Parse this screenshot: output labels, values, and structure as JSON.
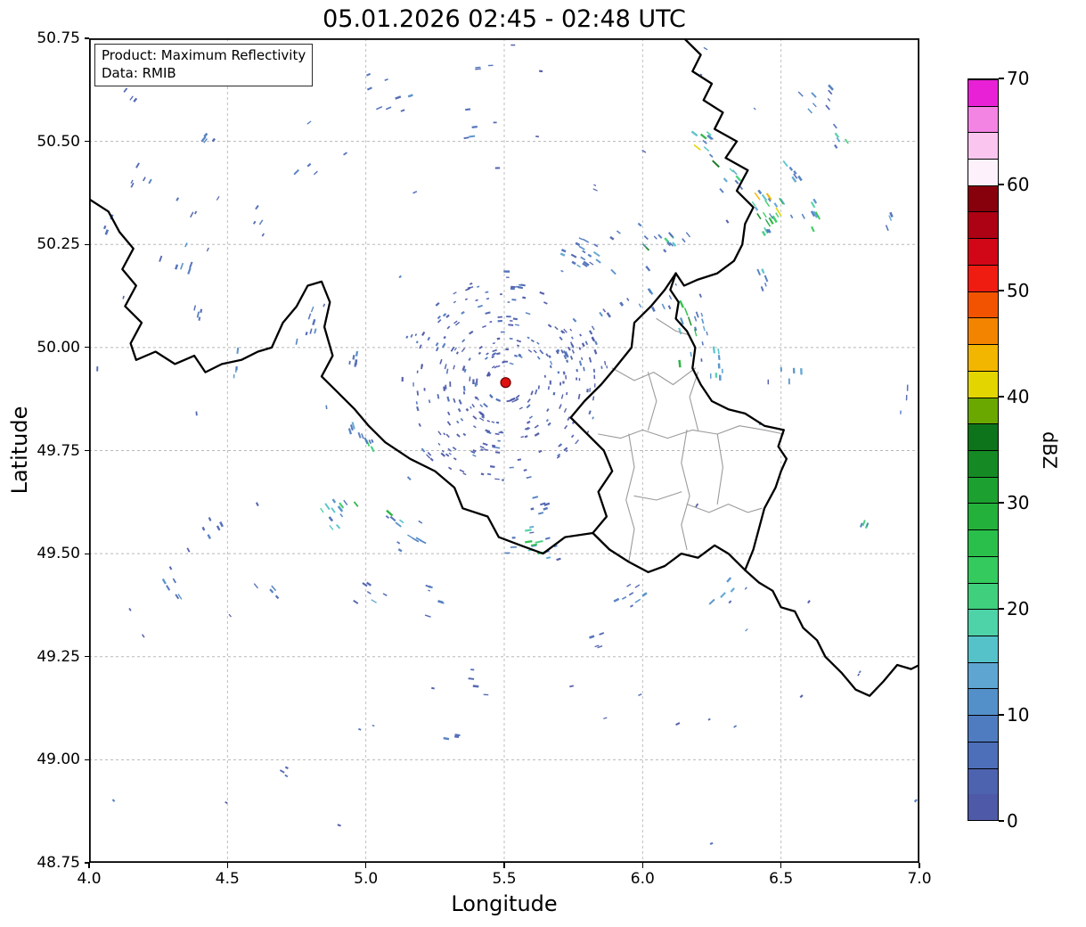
{
  "chart_data": {
    "type": "heatmap",
    "title": "05.01.2026 02:45 - 02:48 UTC",
    "xlabel": "Longitude",
    "ylabel": "Latitude",
    "xlim": [
      4.0,
      7.0
    ],
    "ylim": [
      48.75,
      50.75
    ],
    "xticks": [
      4.0,
      4.5,
      5.0,
      5.5,
      6.0,
      6.5,
      7.0
    ],
    "xtick_labels": [
      "4.0",
      "4.5",
      "5.0",
      "5.5",
      "6.0",
      "6.5",
      "7.0"
    ],
    "yticks": [
      48.75,
      49.0,
      49.25,
      49.5,
      49.75,
      50.0,
      50.25,
      50.5,
      50.75
    ],
    "ytick_labels": [
      "48.75",
      "49.00",
      "49.25",
      "49.50",
      "49.75",
      "50.00",
      "50.25",
      "50.50",
      "50.75"
    ],
    "grid": {
      "style": "dashed",
      "color": "#b8b8b8"
    },
    "annotation_box": {
      "line1": "Product: Maximum Reflectivity",
      "line2": "Data: RMIB"
    },
    "colorbar": {
      "label": "dBZ",
      "vmin": 0,
      "vmax": 70,
      "step_dbz": 2.5,
      "ticks": [
        0,
        10,
        20,
        30,
        40,
        50,
        60,
        70
      ],
      "tick_labels": [
        "0",
        "10",
        "20",
        "30",
        "40",
        "50",
        "60",
        "70"
      ],
      "colors": [
        "#4e59a8",
        "#4d63b0",
        "#4d6eb8",
        "#4f7cc0",
        "#5390c9",
        "#5ea5d2",
        "#55c2ca",
        "#4ed2a7",
        "#40cf7d",
        "#34ca5e",
        "#2abf4a",
        "#23b13b",
        "#1ca02f",
        "#158a24",
        "#0e741b",
        "#6aa800",
        "#e3d500",
        "#f2b500",
        "#f28400",
        "#f25300",
        "#ee1c11",
        "#d10717",
        "#ac0213",
        "#86010c",
        "#fdf2fb",
        "#fac6ef",
        "#f384e3",
        "#e921d6"
      ]
    },
    "radar_site": {
      "lon": 5.505,
      "lat": 49.915,
      "marker_color": "#e01010",
      "edge_color": "#6a0000"
    },
    "clutter_rings": {
      "center_lon": 5.505,
      "center_lat": 49.915,
      "radii_deg": [
        0.05,
        0.08,
        0.11,
        0.14,
        0.17,
        0.21,
        0.25
      ],
      "dbz_range": [
        0,
        9
      ]
    },
    "noise_specks": {
      "count": 70,
      "dbz_range": [
        0,
        10
      ]
    },
    "echo_clusters": [
      [
        6.46,
        50.33,
        26,
        0.09,
        0.07,
        8,
        46
      ],
      [
        6.22,
        50.5,
        10,
        0.05,
        0.05,
        8,
        42
      ],
      [
        6.33,
        50.42,
        8,
        0.05,
        0.04,
        6,
        30
      ],
      [
        6.55,
        50.43,
        6,
        0.04,
        0.05,
        6,
        25
      ],
      [
        6.63,
        50.32,
        7,
        0.05,
        0.04,
        8,
        38
      ],
      [
        6.08,
        50.26,
        14,
        0.1,
        0.04,
        5,
        40
      ],
      [
        5.8,
        50.22,
        20,
        0.13,
        0.05,
        3,
        15
      ],
      [
        6.18,
        50.05,
        16,
        0.08,
        0.09,
        5,
        35
      ],
      [
        6.28,
        49.97,
        8,
        0.05,
        0.05,
        8,
        35
      ],
      [
        6.45,
        50.18,
        5,
        0.04,
        0.04,
        5,
        20
      ],
      [
        6.05,
        50.12,
        8,
        0.06,
        0.06,
        3,
        20
      ],
      [
        4.35,
        50.25,
        8,
        0.08,
        0.09,
        3,
        12
      ],
      [
        4.18,
        50.42,
        5,
        0.05,
        0.05,
        3,
        12
      ],
      [
        4.07,
        50.3,
        3,
        0.03,
        0.04,
        3,
        10
      ],
      [
        4.42,
        50.5,
        4,
        0.04,
        0.04,
        3,
        10
      ],
      [
        5.12,
        50.6,
        5,
        0.06,
        0.05,
        3,
        12
      ],
      [
        5.36,
        50.55,
        4,
        0.04,
        0.04,
        3,
        12
      ],
      [
        5.42,
        50.68,
        3,
        0.04,
        0.03,
        3,
        10
      ],
      [
        4.8,
        50.42,
        3,
        0.05,
        0.04,
        3,
        10
      ],
      [
        4.62,
        50.3,
        4,
        0.05,
        0.05,
        3,
        10
      ],
      [
        4.8,
        50.05,
        8,
        0.06,
        0.06,
        3,
        15
      ],
      [
        4.97,
        49.97,
        6,
        0.05,
        0.04,
        3,
        15
      ],
      [
        4.52,
        49.95,
        4,
        0.04,
        0.04,
        3,
        12
      ],
      [
        5.0,
        49.79,
        10,
        0.06,
        0.04,
        5,
        25
      ],
      [
        4.9,
        49.6,
        12,
        0.08,
        0.06,
        5,
        30
      ],
      [
        5.15,
        49.55,
        12,
        0.08,
        0.06,
        5,
        32
      ],
      [
        4.45,
        49.58,
        5,
        0.05,
        0.05,
        3,
        12
      ],
      [
        4.32,
        49.42,
        6,
        0.06,
        0.05,
        3,
        12
      ],
      [
        4.65,
        49.42,
        4,
        0.05,
        0.04,
        3,
        10
      ],
      [
        5.0,
        49.4,
        6,
        0.06,
        0.05,
        3,
        15
      ],
      [
        5.25,
        49.38,
        5,
        0.05,
        0.05,
        3,
        12
      ],
      [
        5.6,
        49.52,
        14,
        0.09,
        0.05,
        5,
        30
      ],
      [
        5.95,
        49.42,
        8,
        0.07,
        0.05,
        3,
        15
      ],
      [
        6.3,
        49.4,
        5,
        0.05,
        0.04,
        3,
        15
      ],
      [
        5.85,
        49.28,
        4,
        0.05,
        0.04,
        3,
        10
      ],
      [
        5.4,
        49.18,
        4,
        0.05,
        0.04,
        3,
        10
      ],
      [
        5.32,
        49.06,
        3,
        0.04,
        0.03,
        3,
        10
      ],
      [
        4.72,
        48.97,
        3,
        0.04,
        0.03,
        3,
        10
      ],
      [
        6.8,
        49.57,
        4,
        0.03,
        0.05,
        8,
        25
      ],
      [
        6.95,
        49.88,
        3,
        0.03,
        0.04,
        3,
        12
      ],
      [
        6.65,
        50.6,
        8,
        0.08,
        0.05,
        3,
        14
      ],
      [
        6.9,
        50.3,
        3,
        0.04,
        0.03,
        5,
        15
      ],
      [
        6.55,
        49.95,
        5,
        0.05,
        0.05,
        3,
        15
      ],
      [
        5.75,
        50.02,
        6,
        0.06,
        0.05,
        3,
        12
      ],
      [
        5.55,
        50.15,
        5,
        0.05,
        0.05,
        3,
        10
      ],
      [
        5.9,
        50.1,
        6,
        0.06,
        0.05,
        3,
        12
      ],
      [
        4.15,
        50.62,
        3,
        0.04,
        0.04,
        3,
        10
      ],
      [
        4.42,
        50.08,
        4,
        0.05,
        0.05,
        3,
        10
      ],
      [
        5.05,
        50.66,
        3,
        0.04,
        0.03,
        3,
        10
      ],
      [
        5.62,
        49.62,
        6,
        0.05,
        0.04,
        3,
        12
      ],
      [
        6.72,
        50.51,
        5,
        0.04,
        0.05,
        5,
        28
      ]
    ],
    "borders": {
      "country_color": "#000000",
      "country_width": 2.3,
      "region_color": "#9b9b9b",
      "region_width": 1.1,
      "country": [
        [
          [
            4.0,
            50.36
          ],
          [
            4.07,
            50.33
          ],
          [
            4.11,
            50.28
          ],
          [
            4.16,
            50.24
          ],
          [
            4.12,
            50.19
          ],
          [
            4.17,
            50.15
          ],
          [
            4.13,
            50.1
          ],
          [
            4.19,
            50.06
          ],
          [
            4.15,
            50.01
          ],
          [
            4.17,
            49.97
          ],
          [
            4.24,
            49.99
          ],
          [
            4.31,
            49.96
          ],
          [
            4.38,
            49.98
          ],
          [
            4.42,
            49.94
          ],
          [
            4.48,
            49.96
          ],
          [
            4.55,
            49.97
          ],
          [
            4.61,
            49.99
          ],
          [
            4.66,
            50.0
          ],
          [
            4.7,
            50.06
          ],
          [
            4.75,
            50.1
          ],
          [
            4.79,
            50.15
          ],
          [
            4.84,
            50.16
          ],
          [
            4.87,
            50.11
          ],
          [
            4.85,
            50.05
          ],
          [
            4.88,
            49.98
          ],
          [
            4.84,
            49.93
          ],
          [
            4.9,
            49.89
          ],
          [
            4.96,
            49.85
          ],
          [
            5.01,
            49.81
          ],
          [
            5.07,
            49.77
          ],
          [
            5.16,
            49.73
          ],
          [
            5.25,
            49.7
          ],
          [
            5.32,
            49.66
          ],
          [
            5.35,
            49.61
          ],
          [
            5.44,
            49.59
          ],
          [
            5.48,
            49.54
          ],
          [
            5.56,
            49.52
          ],
          [
            5.64,
            49.5
          ],
          [
            5.72,
            49.54
          ],
          [
            5.82,
            49.55
          ]
        ],
        [
          [
            5.82,
            49.55
          ],
          [
            5.87,
            49.59
          ],
          [
            5.84,
            49.65
          ],
          [
            5.89,
            49.7
          ],
          [
            5.86,
            49.75
          ],
          [
            5.8,
            49.79
          ],
          [
            5.74,
            49.83
          ],
          [
            5.79,
            49.87
          ],
          [
            5.85,
            49.91
          ],
          [
            5.9,
            49.95
          ],
          [
            5.96,
            50.0
          ],
          [
            5.97,
            50.06
          ],
          [
            6.03,
            50.1
          ],
          [
            6.08,
            50.14
          ],
          [
            6.12,
            50.18
          ]
        ],
        [
          [
            5.82,
            49.55
          ],
          [
            5.88,
            49.51
          ],
          [
            5.95,
            49.48
          ],
          [
            6.02,
            49.455
          ],
          [
            6.08,
            49.47
          ],
          [
            6.14,
            49.5
          ],
          [
            6.2,
            49.49
          ],
          [
            6.26,
            49.52
          ],
          [
            6.31,
            49.5
          ],
          [
            6.37,
            49.46
          ]
        ],
        [
          [
            6.37,
            49.46
          ],
          [
            6.4,
            49.51
          ],
          [
            6.42,
            49.56
          ],
          [
            6.44,
            49.61
          ],
          [
            6.48,
            49.66
          ],
          [
            6.5,
            49.7
          ],
          [
            6.52,
            49.73
          ],
          [
            6.49,
            49.76
          ],
          [
            6.51,
            49.8
          ],
          [
            6.44,
            49.81
          ],
          [
            6.37,
            49.84
          ],
          [
            6.31,
            49.85
          ],
          [
            6.25,
            49.87
          ],
          [
            6.21,
            49.91
          ],
          [
            6.18,
            49.95
          ],
          [
            6.19,
            50.0
          ],
          [
            6.16,
            50.04
          ],
          [
            6.12,
            50.07
          ],
          [
            6.13,
            50.11
          ],
          [
            6.1,
            50.14
          ],
          [
            6.12,
            50.18
          ]
        ],
        [
          [
            6.15,
            50.75
          ],
          [
            6.21,
            50.71
          ],
          [
            6.18,
            50.67
          ],
          [
            6.25,
            50.64
          ],
          [
            6.22,
            50.6
          ],
          [
            6.29,
            50.57
          ],
          [
            6.26,
            50.53
          ],
          [
            6.34,
            50.5
          ],
          [
            6.3,
            50.46
          ],
          [
            6.38,
            50.43
          ],
          [
            6.34,
            50.38
          ],
          [
            6.4,
            50.34
          ],
          [
            6.37,
            50.3
          ],
          [
            6.36,
            50.25
          ],
          [
            6.33,
            50.21
          ],
          [
            6.27,
            50.18
          ],
          [
            6.2,
            50.165
          ],
          [
            6.15,
            50.15
          ],
          [
            6.12,
            50.18
          ]
        ],
        [
          [
            6.37,
            49.46
          ],
          [
            6.42,
            49.43
          ],
          [
            6.47,
            49.41
          ],
          [
            6.5,
            49.37
          ],
          [
            6.55,
            49.36
          ],
          [
            6.58,
            49.32
          ],
          [
            6.63,
            49.29
          ],
          [
            6.66,
            49.25
          ],
          [
            6.72,
            49.21
          ],
          [
            6.77,
            49.17
          ],
          [
            6.82,
            49.155
          ],
          [
            6.87,
            49.19
          ],
          [
            6.92,
            49.23
          ],
          [
            6.97,
            49.22
          ],
          [
            7.0,
            49.23
          ]
        ]
      ],
      "regions": [
        [
          [
            5.89,
            49.95
          ],
          [
            5.97,
            49.92
          ],
          [
            6.04,
            49.94
          ],
          [
            6.11,
            49.91
          ],
          [
            6.19,
            49.95
          ]
        ],
        [
          [
            5.84,
            49.79
          ],
          [
            5.92,
            49.78
          ],
          [
            6.0,
            49.8
          ],
          [
            6.09,
            49.78
          ],
          [
            6.18,
            49.8
          ],
          [
            6.27,
            49.79
          ],
          [
            6.35,
            49.81
          ],
          [
            6.44,
            49.8
          ],
          [
            6.51,
            49.79
          ]
        ],
        [
          [
            6.02,
            49.94
          ],
          [
            6.05,
            49.87
          ],
          [
            6.02,
            49.8
          ]
        ],
        [
          [
            6.2,
            49.94
          ],
          [
            6.17,
            49.88
          ],
          [
            6.2,
            49.8
          ]
        ],
        [
          [
            5.95,
            49.79
          ],
          [
            5.97,
            49.71
          ],
          [
            5.94,
            49.63
          ],
          [
            5.97,
            49.56
          ],
          [
            5.95,
            49.48
          ]
        ],
        [
          [
            6.16,
            49.8
          ],
          [
            6.14,
            49.72
          ],
          [
            6.17,
            49.64
          ],
          [
            6.14,
            49.57
          ],
          [
            6.16,
            49.51
          ]
        ],
        [
          [
            5.97,
            49.64
          ],
          [
            6.05,
            49.63
          ],
          [
            6.14,
            49.65
          ]
        ],
        [
          [
            6.16,
            49.62
          ],
          [
            6.24,
            49.6
          ],
          [
            6.31,
            49.62
          ],
          [
            6.38,
            49.6
          ],
          [
            6.43,
            49.61
          ]
        ],
        [
          [
            6.27,
            49.79
          ],
          [
            6.29,
            49.71
          ],
          [
            6.27,
            49.62
          ]
        ],
        [
          [
            6.05,
            50.07
          ],
          [
            6.12,
            50.04
          ],
          [
            6.17,
            50.03
          ]
        ]
      ]
    }
  }
}
